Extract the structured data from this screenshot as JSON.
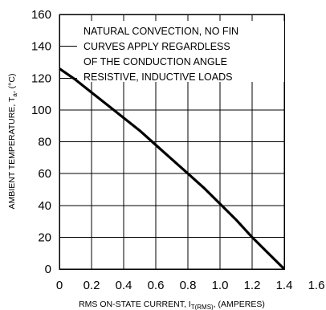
{
  "chart_data": {
    "type": "line",
    "title": "",
    "xlabel": "RMS ON-STATE CURRENT, I",
    "xlabel_sub": "T(RMS)",
    "xlabel_tail": ", (AMPERES)",
    "ylabel": "AMBIENT TEMPERATURE, T",
    "ylabel_sub": "a",
    "ylabel_tail": ", (°C)",
    "xlim": [
      0,
      1.4
    ],
    "ylim": [
      0,
      160
    ],
    "x_ticks": [
      "0",
      "0.2",
      "0.4",
      "0.6",
      "0.8",
      "1.0",
      "1.2",
      "1.4",
      "1.6"
    ],
    "y_ticks": [
      "0",
      "20",
      "40",
      "60",
      "80",
      "100",
      "120",
      "140",
      "160"
    ],
    "grid": true,
    "annotation": [
      "NATURAL CONVECTION, NO FIN",
      "CURVES APPLY REGARDLESS",
      "OF THE CONDUCTION ANGLE",
      "RESISTIVE, INDUCTIVE LOADS"
    ],
    "series": [
      {
        "x": [
          0,
          0.1,
          0.2,
          0.3,
          0.4,
          0.5,
          0.6,
          0.7,
          0.8,
          0.9,
          1.0,
          1.1,
          1.2,
          1.3,
          1.4
        ],
        "y": [
          126,
          119,
          111,
          103,
          95,
          87,
          78,
          69,
          60,
          51,
          41,
          31,
          20,
          10,
          0
        ]
      }
    ]
  }
}
